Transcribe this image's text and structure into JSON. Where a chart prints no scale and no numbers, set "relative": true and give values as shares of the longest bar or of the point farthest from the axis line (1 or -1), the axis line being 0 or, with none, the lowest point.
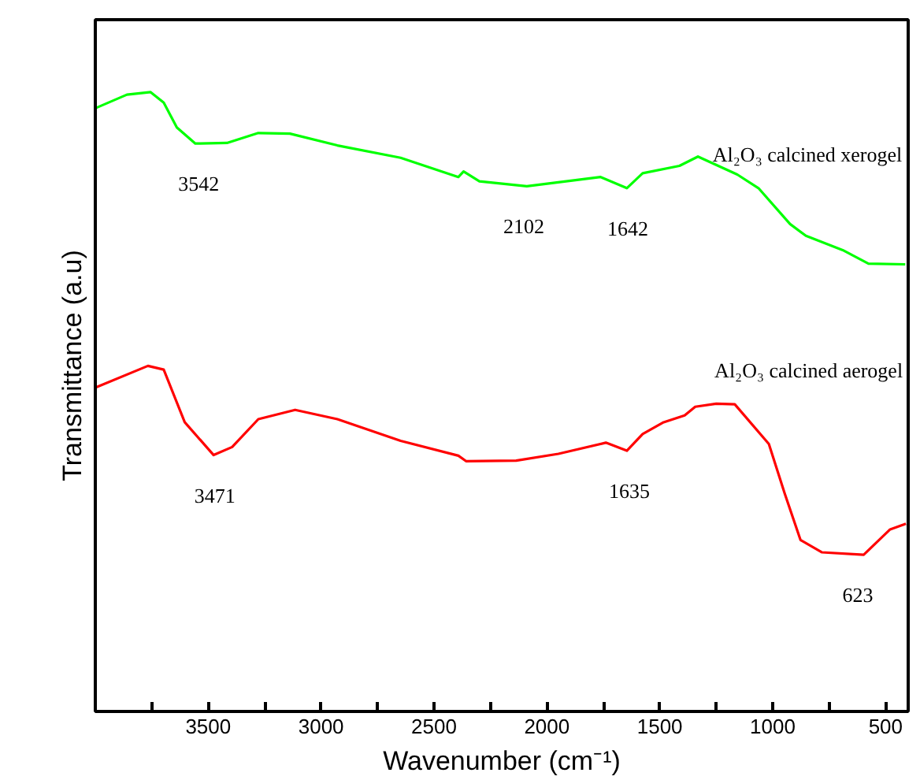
{
  "chart_data": {
    "type": "line",
    "relative": true,
    "xlabel": "Wavenumber (cm⁻¹)",
    "ylabel": "Transmittance (a.u)",
    "xlim": [
      4000,
      400
    ],
    "xticks": [
      {
        "value": 3750,
        "label": null
      },
      3500,
      {
        "value": 3250,
        "label": null
      },
      3000,
      {
        "value": 2750,
        "label": null
      },
      2500,
      {
        "value": 2250,
        "label": null
      },
      2000,
      {
        "value": 1750,
        "label": null
      },
      1500,
      {
        "value": 1250,
        "label": null
      },
      1000,
      {
        "value": 750,
        "label": null
      },
      500
    ],
    "tick_labels": "x",
    "grid": false,
    "marker": "none",
    "line_style": "solid",
    "series": [
      {
        "name": "Al₂O₃ calcined xerogel",
        "color": "#00ff00",
        "x": [
          4000,
          3860,
          3755,
          3697,
          3639,
          3557,
          3417,
          3278,
          3138,
          2928,
          2648,
          2392,
          2369,
          2299,
          2089,
          1762,
          1646,
          1576,
          1413,
          1331,
          1157,
          1063,
          923,
          853,
          690,
          576,
          413
        ],
        "values": [
          0.974,
          0.996,
          1.0,
          0.983,
          0.943,
          0.917,
          0.918,
          0.934,
          0.933,
          0.914,
          0.894,
          0.863,
          0.872,
          0.856,
          0.848,
          0.863,
          0.845,
          0.869,
          0.881,
          0.896,
          0.867,
          0.845,
          0.787,
          0.768,
          0.745,
          0.723,
          0.722
        ]
      },
      {
        "name": "Al₂O₃ calcined aerogel",
        "color": "#ff0000",
        "x": [
          4000,
          3767,
          3697,
          3604,
          3476,
          3394,
          3278,
          3115,
          2928,
          2648,
          2392,
          2357,
          2136,
          1949,
          1739,
          1646,
          1576,
          1483,
          1390,
          1343,
          1250,
          1168,
          1017,
          947,
          877,
          783,
          597,
          480,
          410
        ],
        "values": [
          0.523,
          0.558,
          0.552,
          0.467,
          0.414,
          0.427,
          0.472,
          0.487,
          0.472,
          0.437,
          0.413,
          0.404,
          0.405,
          0.416,
          0.434,
          0.421,
          0.448,
          0.467,
          0.478,
          0.492,
          0.497,
          0.496,
          0.432,
          0.352,
          0.277,
          0.257,
          0.253,
          0.294,
          0.303
        ]
      }
    ],
    "annotations": [
      {
        "text": "3542",
        "x": 3542,
        "y": 0.917
      },
      {
        "text": "2102",
        "x": 2102,
        "y": 0.848
      },
      {
        "text": "1642",
        "x": 1642,
        "y": 0.845
      },
      {
        "text": "3471",
        "x": 3471,
        "y": 0.414
      },
      {
        "text": "1635",
        "x": 1635,
        "y": 0.421
      },
      {
        "text": "623",
        "x": 623,
        "y": 0.253
      }
    ]
  }
}
